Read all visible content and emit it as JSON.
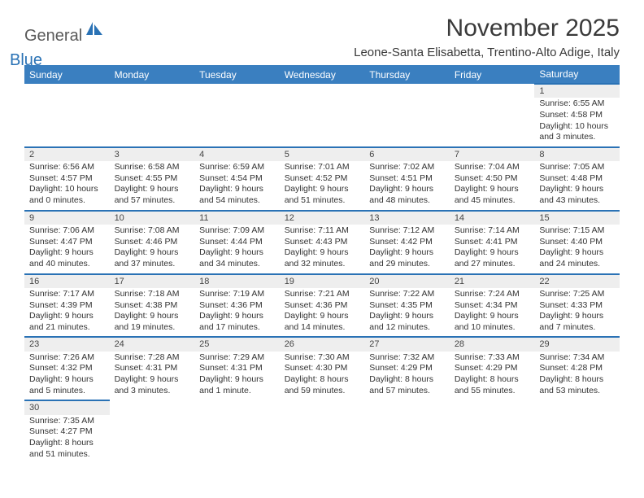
{
  "brand": {
    "part1": "General",
    "part2": "Blue"
  },
  "title": "November 2025",
  "location": "Leone-Santa Elisabetta, Trentino-Alto Adige, Italy",
  "colors": {
    "header_bg": "#3a7fc0",
    "accent": "#2a72b5",
    "daynum_bg": "#eeeeee",
    "text": "#333333",
    "title_text": "#3a3a3a"
  },
  "days_of_week": [
    "Sunday",
    "Monday",
    "Tuesday",
    "Wednesday",
    "Thursday",
    "Friday",
    "Saturday"
  ],
  "weeks": [
    [
      null,
      null,
      null,
      null,
      null,
      null,
      {
        "n": "1",
        "sunrise": "Sunrise: 6:55 AM",
        "sunset": "Sunset: 4:58 PM",
        "day1": "Daylight: 10 hours",
        "day2": "and 3 minutes."
      }
    ],
    [
      {
        "n": "2",
        "sunrise": "Sunrise: 6:56 AM",
        "sunset": "Sunset: 4:57 PM",
        "day1": "Daylight: 10 hours",
        "day2": "and 0 minutes."
      },
      {
        "n": "3",
        "sunrise": "Sunrise: 6:58 AM",
        "sunset": "Sunset: 4:55 PM",
        "day1": "Daylight: 9 hours",
        "day2": "and 57 minutes."
      },
      {
        "n": "4",
        "sunrise": "Sunrise: 6:59 AM",
        "sunset": "Sunset: 4:54 PM",
        "day1": "Daylight: 9 hours",
        "day2": "and 54 minutes."
      },
      {
        "n": "5",
        "sunrise": "Sunrise: 7:01 AM",
        "sunset": "Sunset: 4:52 PM",
        "day1": "Daylight: 9 hours",
        "day2": "and 51 minutes."
      },
      {
        "n": "6",
        "sunrise": "Sunrise: 7:02 AM",
        "sunset": "Sunset: 4:51 PM",
        "day1": "Daylight: 9 hours",
        "day2": "and 48 minutes."
      },
      {
        "n": "7",
        "sunrise": "Sunrise: 7:04 AM",
        "sunset": "Sunset: 4:50 PM",
        "day1": "Daylight: 9 hours",
        "day2": "and 45 minutes."
      },
      {
        "n": "8",
        "sunrise": "Sunrise: 7:05 AM",
        "sunset": "Sunset: 4:48 PM",
        "day1": "Daylight: 9 hours",
        "day2": "and 43 minutes."
      }
    ],
    [
      {
        "n": "9",
        "sunrise": "Sunrise: 7:06 AM",
        "sunset": "Sunset: 4:47 PM",
        "day1": "Daylight: 9 hours",
        "day2": "and 40 minutes."
      },
      {
        "n": "10",
        "sunrise": "Sunrise: 7:08 AM",
        "sunset": "Sunset: 4:46 PM",
        "day1": "Daylight: 9 hours",
        "day2": "and 37 minutes."
      },
      {
        "n": "11",
        "sunrise": "Sunrise: 7:09 AM",
        "sunset": "Sunset: 4:44 PM",
        "day1": "Daylight: 9 hours",
        "day2": "and 34 minutes."
      },
      {
        "n": "12",
        "sunrise": "Sunrise: 7:11 AM",
        "sunset": "Sunset: 4:43 PM",
        "day1": "Daylight: 9 hours",
        "day2": "and 32 minutes."
      },
      {
        "n": "13",
        "sunrise": "Sunrise: 7:12 AM",
        "sunset": "Sunset: 4:42 PM",
        "day1": "Daylight: 9 hours",
        "day2": "and 29 minutes."
      },
      {
        "n": "14",
        "sunrise": "Sunrise: 7:14 AM",
        "sunset": "Sunset: 4:41 PM",
        "day1": "Daylight: 9 hours",
        "day2": "and 27 minutes."
      },
      {
        "n": "15",
        "sunrise": "Sunrise: 7:15 AM",
        "sunset": "Sunset: 4:40 PM",
        "day1": "Daylight: 9 hours",
        "day2": "and 24 minutes."
      }
    ],
    [
      {
        "n": "16",
        "sunrise": "Sunrise: 7:17 AM",
        "sunset": "Sunset: 4:39 PM",
        "day1": "Daylight: 9 hours",
        "day2": "and 21 minutes."
      },
      {
        "n": "17",
        "sunrise": "Sunrise: 7:18 AM",
        "sunset": "Sunset: 4:38 PM",
        "day1": "Daylight: 9 hours",
        "day2": "and 19 minutes."
      },
      {
        "n": "18",
        "sunrise": "Sunrise: 7:19 AM",
        "sunset": "Sunset: 4:36 PM",
        "day1": "Daylight: 9 hours",
        "day2": "and 17 minutes."
      },
      {
        "n": "19",
        "sunrise": "Sunrise: 7:21 AM",
        "sunset": "Sunset: 4:36 PM",
        "day1": "Daylight: 9 hours",
        "day2": "and 14 minutes."
      },
      {
        "n": "20",
        "sunrise": "Sunrise: 7:22 AM",
        "sunset": "Sunset: 4:35 PM",
        "day1": "Daylight: 9 hours",
        "day2": "and 12 minutes."
      },
      {
        "n": "21",
        "sunrise": "Sunrise: 7:24 AM",
        "sunset": "Sunset: 4:34 PM",
        "day1": "Daylight: 9 hours",
        "day2": "and 10 minutes."
      },
      {
        "n": "22",
        "sunrise": "Sunrise: 7:25 AM",
        "sunset": "Sunset: 4:33 PM",
        "day1": "Daylight: 9 hours",
        "day2": "and 7 minutes."
      }
    ],
    [
      {
        "n": "23",
        "sunrise": "Sunrise: 7:26 AM",
        "sunset": "Sunset: 4:32 PM",
        "day1": "Daylight: 9 hours",
        "day2": "and 5 minutes."
      },
      {
        "n": "24",
        "sunrise": "Sunrise: 7:28 AM",
        "sunset": "Sunset: 4:31 PM",
        "day1": "Daylight: 9 hours",
        "day2": "and 3 minutes."
      },
      {
        "n": "25",
        "sunrise": "Sunrise: 7:29 AM",
        "sunset": "Sunset: 4:31 PM",
        "day1": "Daylight: 9 hours",
        "day2": "and 1 minute."
      },
      {
        "n": "26",
        "sunrise": "Sunrise: 7:30 AM",
        "sunset": "Sunset: 4:30 PM",
        "day1": "Daylight: 8 hours",
        "day2": "and 59 minutes."
      },
      {
        "n": "27",
        "sunrise": "Sunrise: 7:32 AM",
        "sunset": "Sunset: 4:29 PM",
        "day1": "Daylight: 8 hours",
        "day2": "and 57 minutes."
      },
      {
        "n": "28",
        "sunrise": "Sunrise: 7:33 AM",
        "sunset": "Sunset: 4:29 PM",
        "day1": "Daylight: 8 hours",
        "day2": "and 55 minutes."
      },
      {
        "n": "29",
        "sunrise": "Sunrise: 7:34 AM",
        "sunset": "Sunset: 4:28 PM",
        "day1": "Daylight: 8 hours",
        "day2": "and 53 minutes."
      }
    ],
    [
      {
        "n": "30",
        "sunrise": "Sunrise: 7:35 AM",
        "sunset": "Sunset: 4:27 PM",
        "day1": "Daylight: 8 hours",
        "day2": "and 51 minutes."
      },
      null,
      null,
      null,
      null,
      null,
      null
    ]
  ]
}
